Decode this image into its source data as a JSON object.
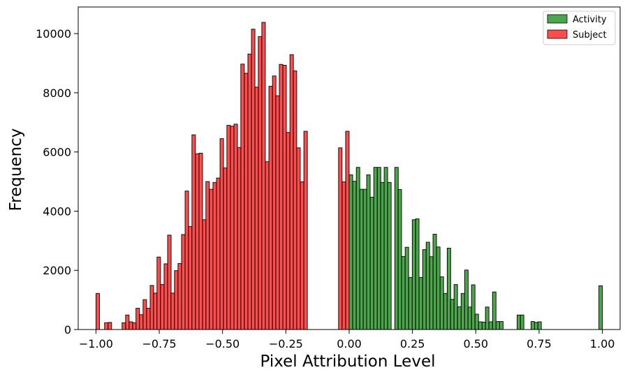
{
  "chart_data": {
    "type": "bar",
    "title": "",
    "xlabel": "Pixel Attribution Level",
    "ylabel": "Frequency",
    "xlim": [
      -1.07,
      1.07
    ],
    "ylim": [
      0,
      10900
    ],
    "bin_width": 0.0138,
    "grid": false,
    "legend_position": "top-right",
    "x_ticks": [
      {
        "value": -1.0,
        "label": "−1.00"
      },
      {
        "value": -0.75,
        "label": "−0.75"
      },
      {
        "value": -0.5,
        "label": "−0.50"
      },
      {
        "value": -0.25,
        "label": "−0.25"
      },
      {
        "value": 0.0,
        "label": "0.00"
      },
      {
        "value": 0.25,
        "label": "0.25"
      },
      {
        "value": 0.5,
        "label": "0.50"
      },
      {
        "value": 0.75,
        "label": "0.75"
      },
      {
        "value": 1.0,
        "label": "1.00"
      }
    ],
    "y_ticks": [
      {
        "value": 0,
        "label": "0"
      },
      {
        "value": 2000,
        "label": "2000"
      },
      {
        "value": 4000,
        "label": "4000"
      },
      {
        "value": 6000,
        "label": "6000"
      },
      {
        "value": 8000,
        "label": "8000"
      },
      {
        "value": 10000,
        "label": "10000"
      }
    ],
    "series": [
      {
        "name": "Activity",
        "color": "#008000",
        "bins": [
          [
            0.007,
            5230
          ],
          [
            0.021,
            5010
          ],
          [
            0.035,
            5480
          ],
          [
            0.049,
            4740
          ],
          [
            0.062,
            4740
          ],
          [
            0.076,
            5230
          ],
          [
            0.09,
            4470
          ],
          [
            0.104,
            5480
          ],
          [
            0.118,
            5480
          ],
          [
            0.131,
            4970
          ],
          [
            0.145,
            5480
          ],
          [
            0.159,
            4970
          ],
          [
            0.173,
            0
          ],
          [
            0.187,
            5480
          ],
          [
            0.2,
            4730
          ],
          [
            0.214,
            2470
          ],
          [
            0.228,
            2780
          ],
          [
            0.242,
            1760
          ],
          [
            0.256,
            3710
          ],
          [
            0.269,
            3740
          ],
          [
            0.283,
            1760
          ],
          [
            0.297,
            2700
          ],
          [
            0.311,
            2950
          ],
          [
            0.325,
            2460
          ],
          [
            0.338,
            3220
          ],
          [
            0.352,
            2790
          ],
          [
            0.366,
            1780
          ],
          [
            0.38,
            1220
          ],
          [
            0.394,
            2750
          ],
          [
            0.407,
            1020
          ],
          [
            0.421,
            1520
          ],
          [
            0.435,
            770
          ],
          [
            0.449,
            1220
          ],
          [
            0.463,
            2010
          ],
          [
            0.476,
            760
          ],
          [
            0.49,
            1510
          ],
          [
            0.504,
            520
          ],
          [
            0.518,
            260
          ],
          [
            0.532,
            250
          ],
          [
            0.545,
            760
          ],
          [
            0.559,
            260
          ],
          [
            0.573,
            1270
          ],
          [
            0.587,
            270
          ],
          [
            0.601,
            270
          ],
          [
            0.614,
            0
          ],
          [
            0.628,
            0
          ],
          [
            0.642,
            0
          ],
          [
            0.656,
            0
          ],
          [
            0.67,
            490
          ],
          [
            0.683,
            490
          ],
          [
            0.697,
            0
          ],
          [
            0.711,
            0
          ],
          [
            0.725,
            270
          ],
          [
            0.739,
            240
          ],
          [
            0.752,
            260
          ],
          [
            0.766,
            0
          ],
          [
            0.78,
            0
          ],
          [
            0.794,
            0
          ],
          [
            0.808,
            0
          ],
          [
            0.821,
            0
          ],
          [
            0.835,
            0
          ],
          [
            0.849,
            0
          ],
          [
            0.863,
            0
          ],
          [
            0.877,
            0
          ],
          [
            0.89,
            0
          ],
          [
            0.904,
            0
          ],
          [
            0.918,
            0
          ],
          [
            0.932,
            0
          ],
          [
            0.946,
            0
          ],
          [
            0.959,
            0
          ],
          [
            0.973,
            0
          ],
          [
            0.993,
            1480
          ]
        ]
      },
      {
        "name": "Subject",
        "color": "#ff0000",
        "bins": [
          [
            -0.993,
            1220
          ],
          [
            -0.959,
            230
          ],
          [
            -0.945,
            240
          ],
          [
            -0.89,
            230
          ],
          [
            -0.876,
            490
          ],
          [
            -0.862,
            260
          ],
          [
            -0.848,
            230
          ],
          [
            -0.835,
            720
          ],
          [
            -0.821,
            500
          ],
          [
            -0.807,
            1010
          ],
          [
            -0.793,
            720
          ],
          [
            -0.779,
            1490
          ],
          [
            -0.766,
            1230
          ],
          [
            -0.752,
            2450
          ],
          [
            -0.738,
            1520
          ],
          [
            -0.724,
            2220
          ],
          [
            -0.71,
            3190
          ],
          [
            -0.697,
            1230
          ],
          [
            -0.683,
            1990
          ],
          [
            -0.669,
            2230
          ],
          [
            -0.655,
            3210
          ],
          [
            -0.641,
            4680
          ],
          [
            -0.628,
            3480
          ],
          [
            -0.614,
            6580
          ],
          [
            -0.6,
            5940
          ],
          [
            -0.586,
            5960
          ],
          [
            -0.572,
            3710
          ],
          [
            -0.559,
            5000
          ],
          [
            -0.545,
            4740
          ],
          [
            -0.531,
            4970
          ],
          [
            -0.517,
            5120
          ],
          [
            -0.503,
            6450
          ],
          [
            -0.49,
            5460
          ],
          [
            -0.476,
            6900
          ],
          [
            -0.462,
            6870
          ],
          [
            -0.448,
            6940
          ],
          [
            -0.434,
            6150
          ],
          [
            -0.421,
            8970
          ],
          [
            -0.407,
            8660
          ],
          [
            -0.393,
            9310
          ],
          [
            -0.379,
            10150
          ],
          [
            -0.365,
            8190
          ],
          [
            -0.352,
            9900
          ],
          [
            -0.338,
            10380
          ],
          [
            -0.324,
            5670
          ],
          [
            -0.31,
            8220
          ],
          [
            -0.296,
            8570
          ],
          [
            -0.283,
            7900
          ],
          [
            -0.269,
            8960
          ],
          [
            -0.255,
            8930
          ],
          [
            -0.241,
            6660
          ],
          [
            -0.227,
            9290
          ],
          [
            -0.214,
            8740
          ],
          [
            -0.2,
            6140
          ],
          [
            -0.186,
            4990
          ],
          [
            -0.172,
            6700
          ],
          [
            -0.007,
            6700
          ],
          [
            -0.021,
            4990
          ],
          [
            -0.035,
            6140
          ]
        ]
      }
    ]
  }
}
